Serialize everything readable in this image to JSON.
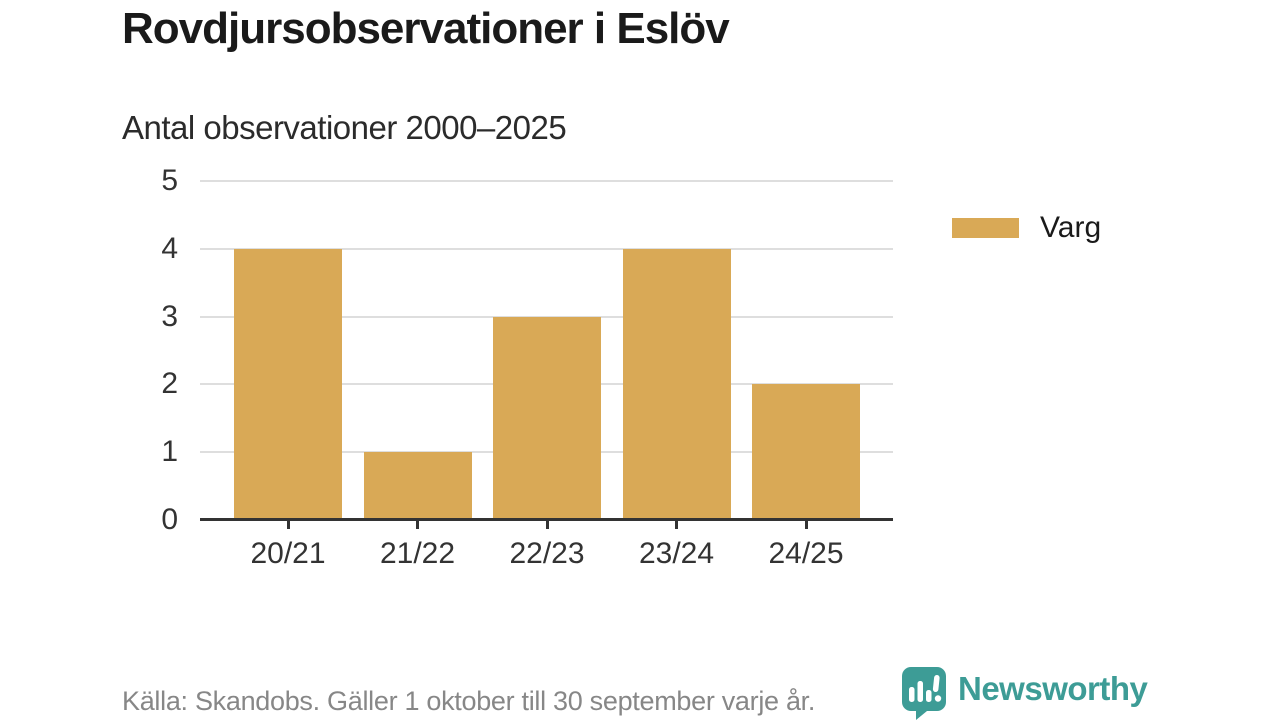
{
  "header": {
    "title": "Rovdjursobservationer i Eslöv",
    "subtitle": "Antal observationer 2000–2025"
  },
  "chart_data": {
    "type": "bar",
    "categories": [
      "20/21",
      "21/22",
      "22/23",
      "23/24",
      "24/25"
    ],
    "series": [
      {
        "name": "Varg",
        "values": [
          4,
          1,
          3,
          4,
          2
        ],
        "color": "#d9a956"
      }
    ],
    "title": "Rovdjursobservationer i Eslöv",
    "subtitle": "Antal observationer 2000–2025",
    "xlabel": "",
    "ylabel": "",
    "ylim": [
      0,
      5
    ],
    "yticks": [
      0,
      1,
      2,
      3,
      4,
      5
    ],
    "grid": true,
    "legend_position": "right"
  },
  "legend": {
    "items": [
      {
        "label": "Varg",
        "color": "#d9a956"
      }
    ]
  },
  "footer": {
    "source": "Källa: Skandobs. Gäller 1 oktober till 30 september varje år.",
    "brand": "Newsworthy"
  },
  "colors": {
    "bar": "#d9a956",
    "axis": "#333333",
    "gridline": "#dedede",
    "title": "#1a1a1a",
    "source_text": "#878787",
    "brand_teal": "#3d9c96",
    "background": "#ffffff"
  }
}
